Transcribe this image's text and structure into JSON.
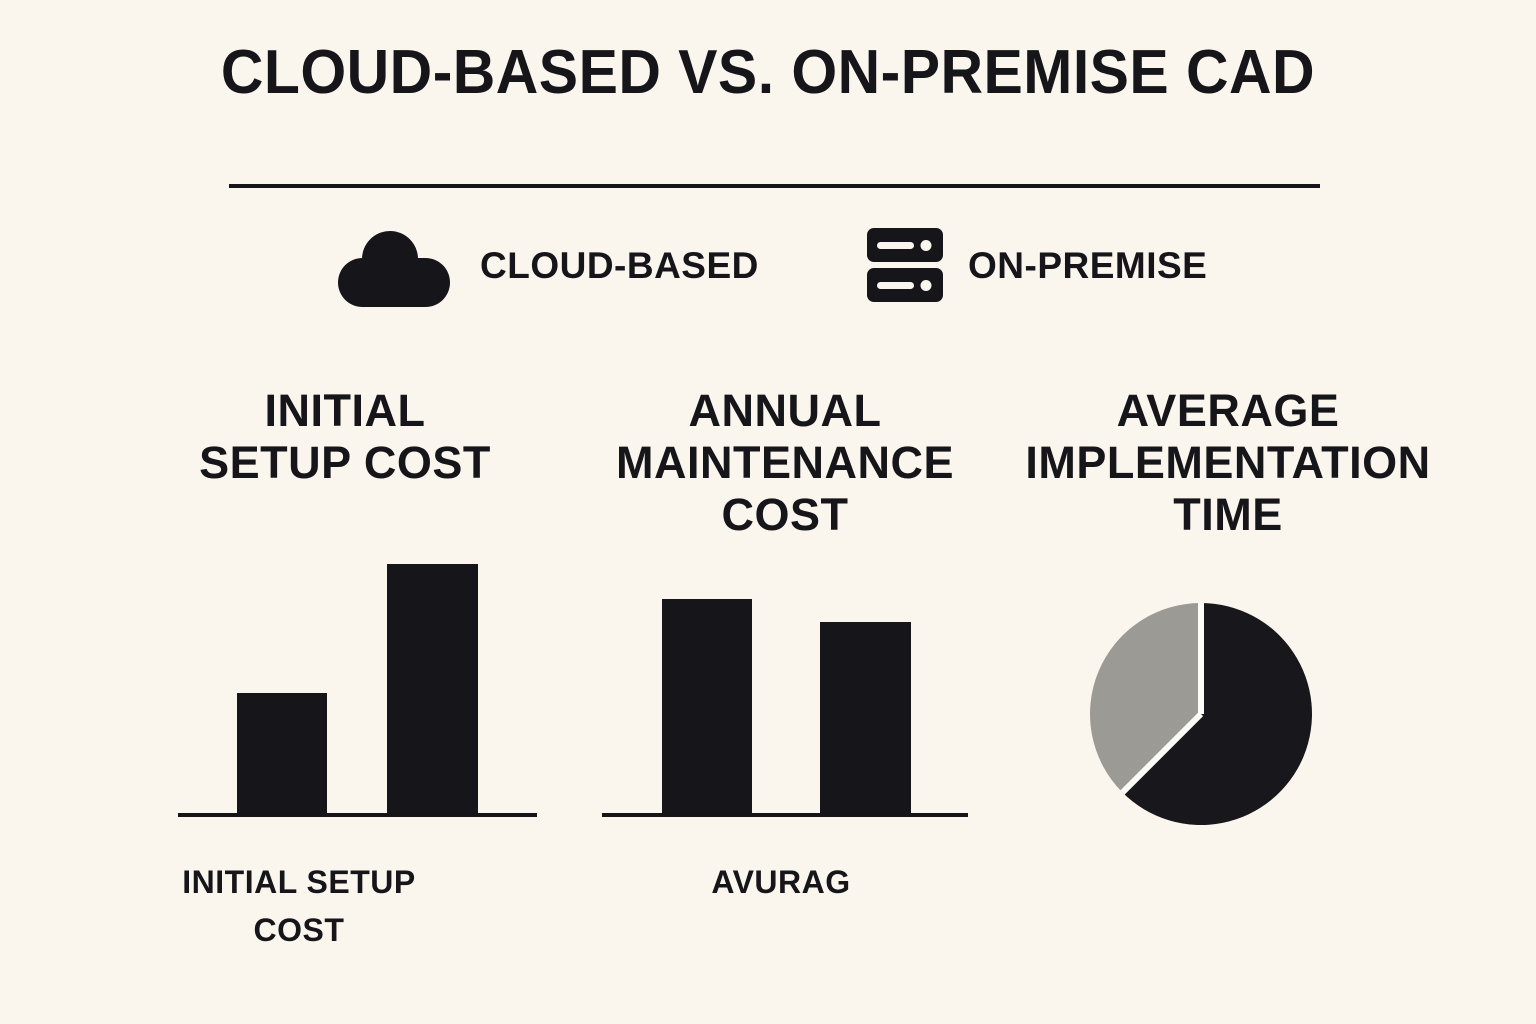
{
  "colors": {
    "background": "#FAF6EE",
    "ink": "#15151A",
    "divider": "#141419",
    "pie_black": "#17171C",
    "pie_gray": "#9B9A94",
    "pie_gap": "#FCFCF9"
  },
  "title": "CLOUD-BASED VS. ON-PREMISE CAD",
  "legend": {
    "items": [
      {
        "icon": "cloud-icon",
        "label": "CLOUD-BASED"
      },
      {
        "icon": "server-icon",
        "label": "ON-PREMISE"
      }
    ]
  },
  "sections": [
    {
      "heading_lines": [
        "INITIAL",
        "SETUP COST"
      ]
    },
    {
      "heading_lines": [
        "ANNUAL",
        "MAINTENANCE",
        "COST"
      ]
    },
    {
      "heading_lines": [
        "AVERAGE",
        "IMPLEMENTATION",
        "TIME"
      ]
    }
  ],
  "chart_data": [
    {
      "type": "bar",
      "title": "INITIAL SETUP COST",
      "categories": [
        "CLOUD-BASED",
        "ON-PREMISE"
      ],
      "values": [
        49,
        100
      ],
      "ylim": [
        0,
        100
      ],
      "bar_color": "#15151A",
      "axis_style": "baseline only, no ticks, no value labels",
      "caption_lines": [
        "INITIAL SETUP",
        "COST"
      ]
    },
    {
      "type": "bar",
      "title": "ANNUAL MAINTENANCE COST",
      "categories": [
        "CLOUD-BASED",
        "ON-PREMISE"
      ],
      "values": [
        86,
        77
      ],
      "ylim": [
        0,
        100
      ],
      "bar_color": "#15151A",
      "axis_style": "baseline only, no ticks, no value labels",
      "caption_lines": [
        "AVURAG"
      ]
    },
    {
      "type": "pie",
      "title": "AVERAGE IMPLEMENTATION TIME",
      "start_angle_deg": 0,
      "segments": [
        {
          "color": "#17171C",
          "percent": 62.5
        },
        {
          "color": "#9B9A94",
          "percent": 37.5
        }
      ],
      "gap_color": "#FCFCF9",
      "legend_position": "none, slices unlabeled"
    }
  ]
}
